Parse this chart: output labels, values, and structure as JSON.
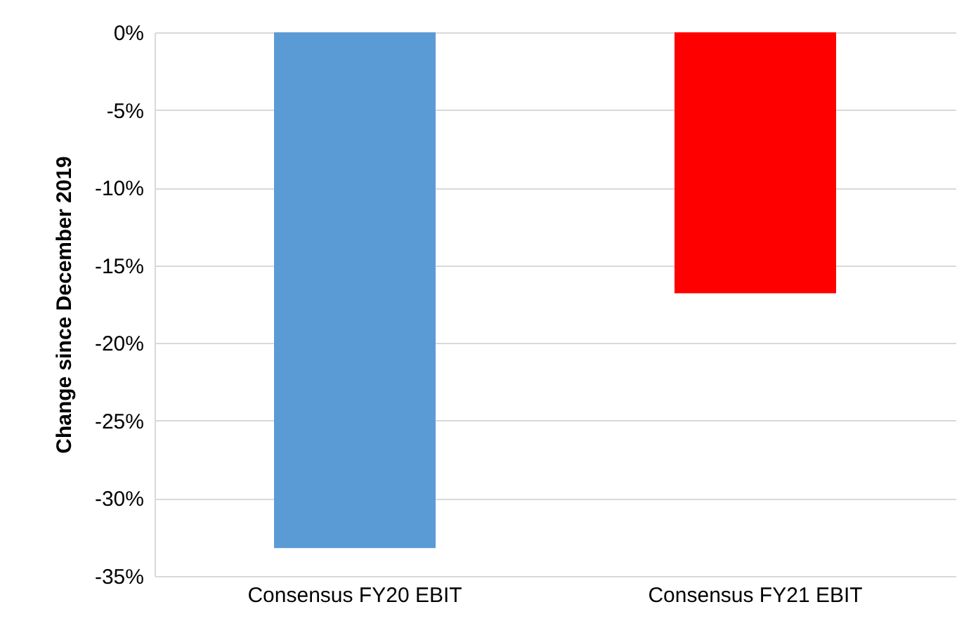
{
  "chart_data": {
    "type": "bar",
    "ylabel": "Change since December 2019",
    "categories": [
      "Consensus FY20 EBIT",
      "Consensus FY21 EBIT"
    ],
    "values": [
      -33.2,
      -16.8
    ],
    "colors": [
      "#5b9bd5",
      "#ff0000"
    ],
    "ylim": [
      -35,
      0
    ],
    "yticks": [
      {
        "value": 0,
        "label": "0%"
      },
      {
        "value": -5,
        "label": "-5%"
      },
      {
        "value": -10,
        "label": "-10%"
      },
      {
        "value": -15,
        "label": "-15%"
      },
      {
        "value": -20,
        "label": "-20%"
      },
      {
        "value": -25,
        "label": "-25%"
      },
      {
        "value": -30,
        "label": "-30%"
      },
      {
        "value": -35,
        "label": "-35%"
      }
    ],
    "grid": "y"
  }
}
